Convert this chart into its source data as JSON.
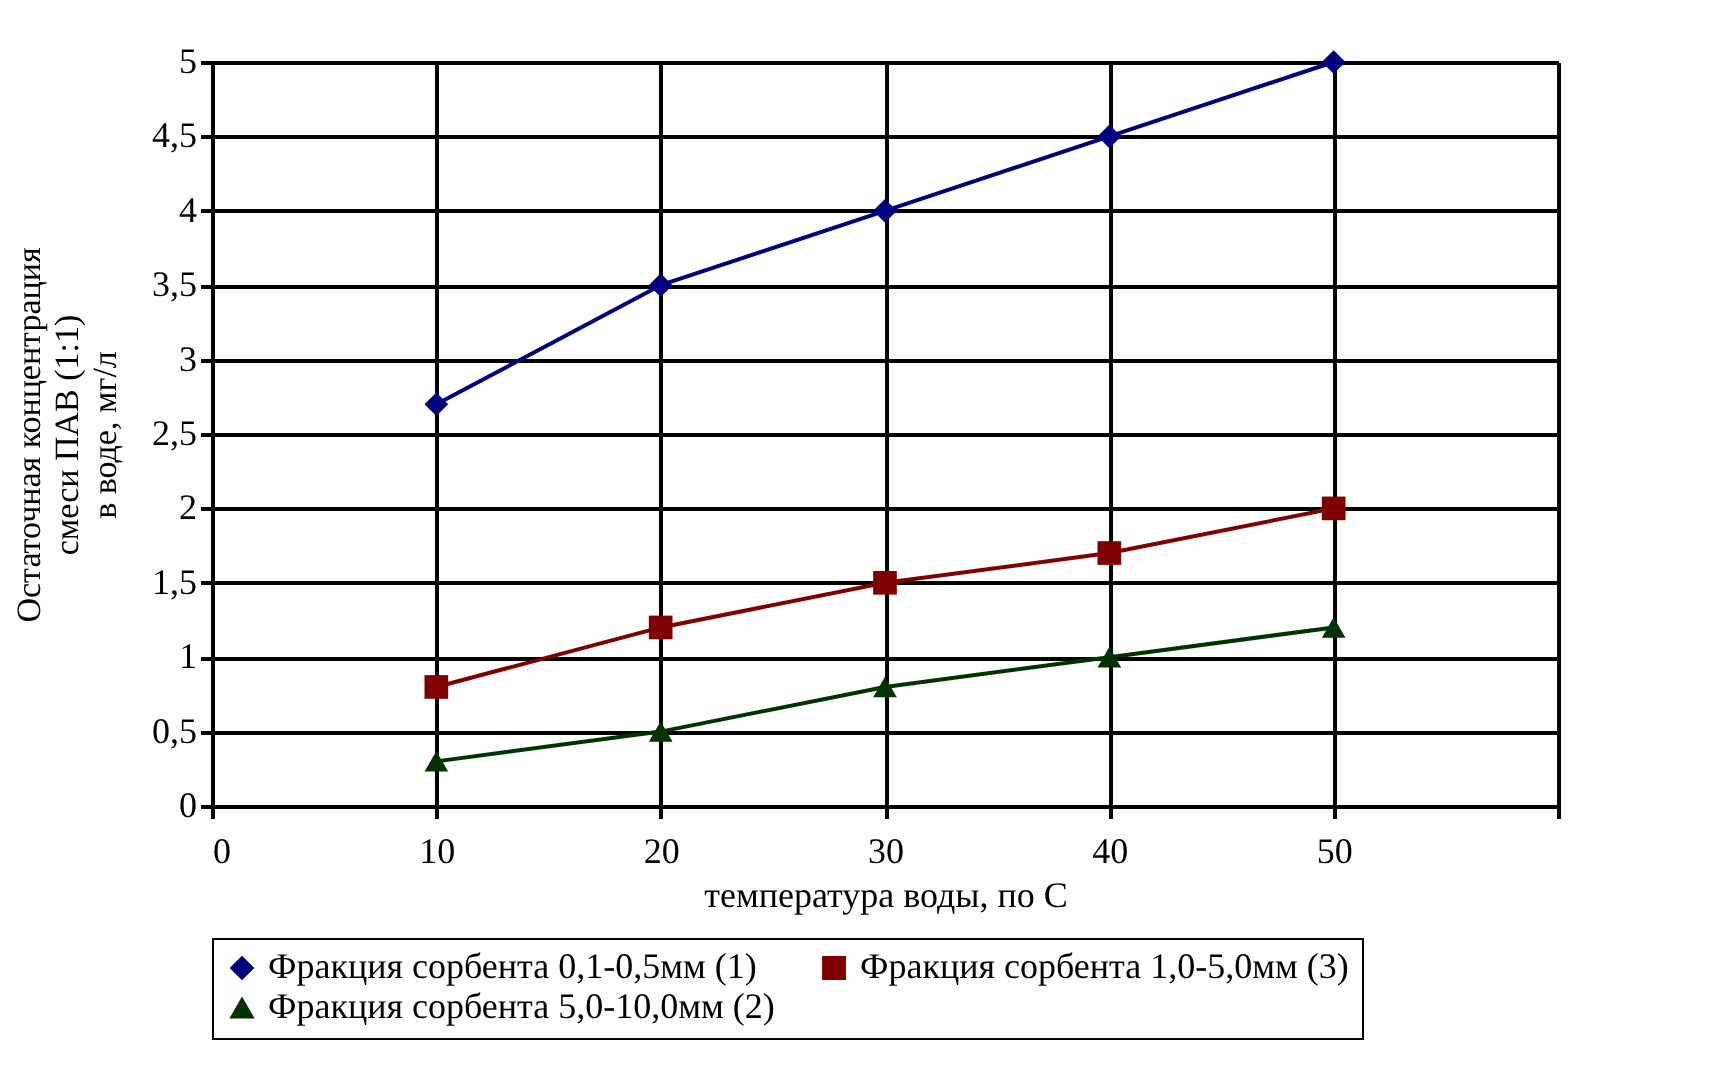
{
  "chart_data": {
    "type": "line",
    "xlabel": "температура воды, по С",
    "ylabel": "Остаточная концентрация\nсмеси ПАВ (1:1)\nв воде, мг/л",
    "x": [
      10,
      20,
      30,
      40,
      50
    ],
    "series": [
      {
        "name": "Фракция сорбента 0,1-0,5мм (1)",
        "color": "#000080",
        "marker": "diamond",
        "values": [
          2.7,
          3.5,
          4.0,
          4.5,
          5.0
        ]
      },
      {
        "name": "Фракция сорбента 1,0-5,0мм (3)",
        "color": "#800000",
        "marker": "square",
        "values": [
          0.8,
          1.2,
          1.5,
          1.7,
          2.0
        ]
      },
      {
        "name": "Фракция сорбента 5,0-10,0мм (2)",
        "color": "#003300",
        "marker": "triangle",
        "values": [
          0.3,
          0.5,
          0.8,
          1.0,
          1.2
        ]
      }
    ],
    "xlim": [
      0,
      60
    ],
    "xticks": [
      0,
      10,
      20,
      30,
      40,
      50,
      {
        "value": 60,
        "label": null
      }
    ],
    "ylim": [
      0,
      5
    ],
    "yticks": [
      0,
      {
        "value": 0.5,
        "label": "0,5"
      },
      1,
      {
        "value": 1.5,
        "label": "1,5"
      },
      2,
      {
        "value": 2.5,
        "label": "2,5"
      },
      3,
      {
        "value": 3.5,
        "label": "3,5"
      },
      4,
      {
        "value": 4.5,
        "label": "4,5"
      },
      5
    ],
    "grid": true,
    "legend": "bottom",
    "line_style": "solid"
  }
}
